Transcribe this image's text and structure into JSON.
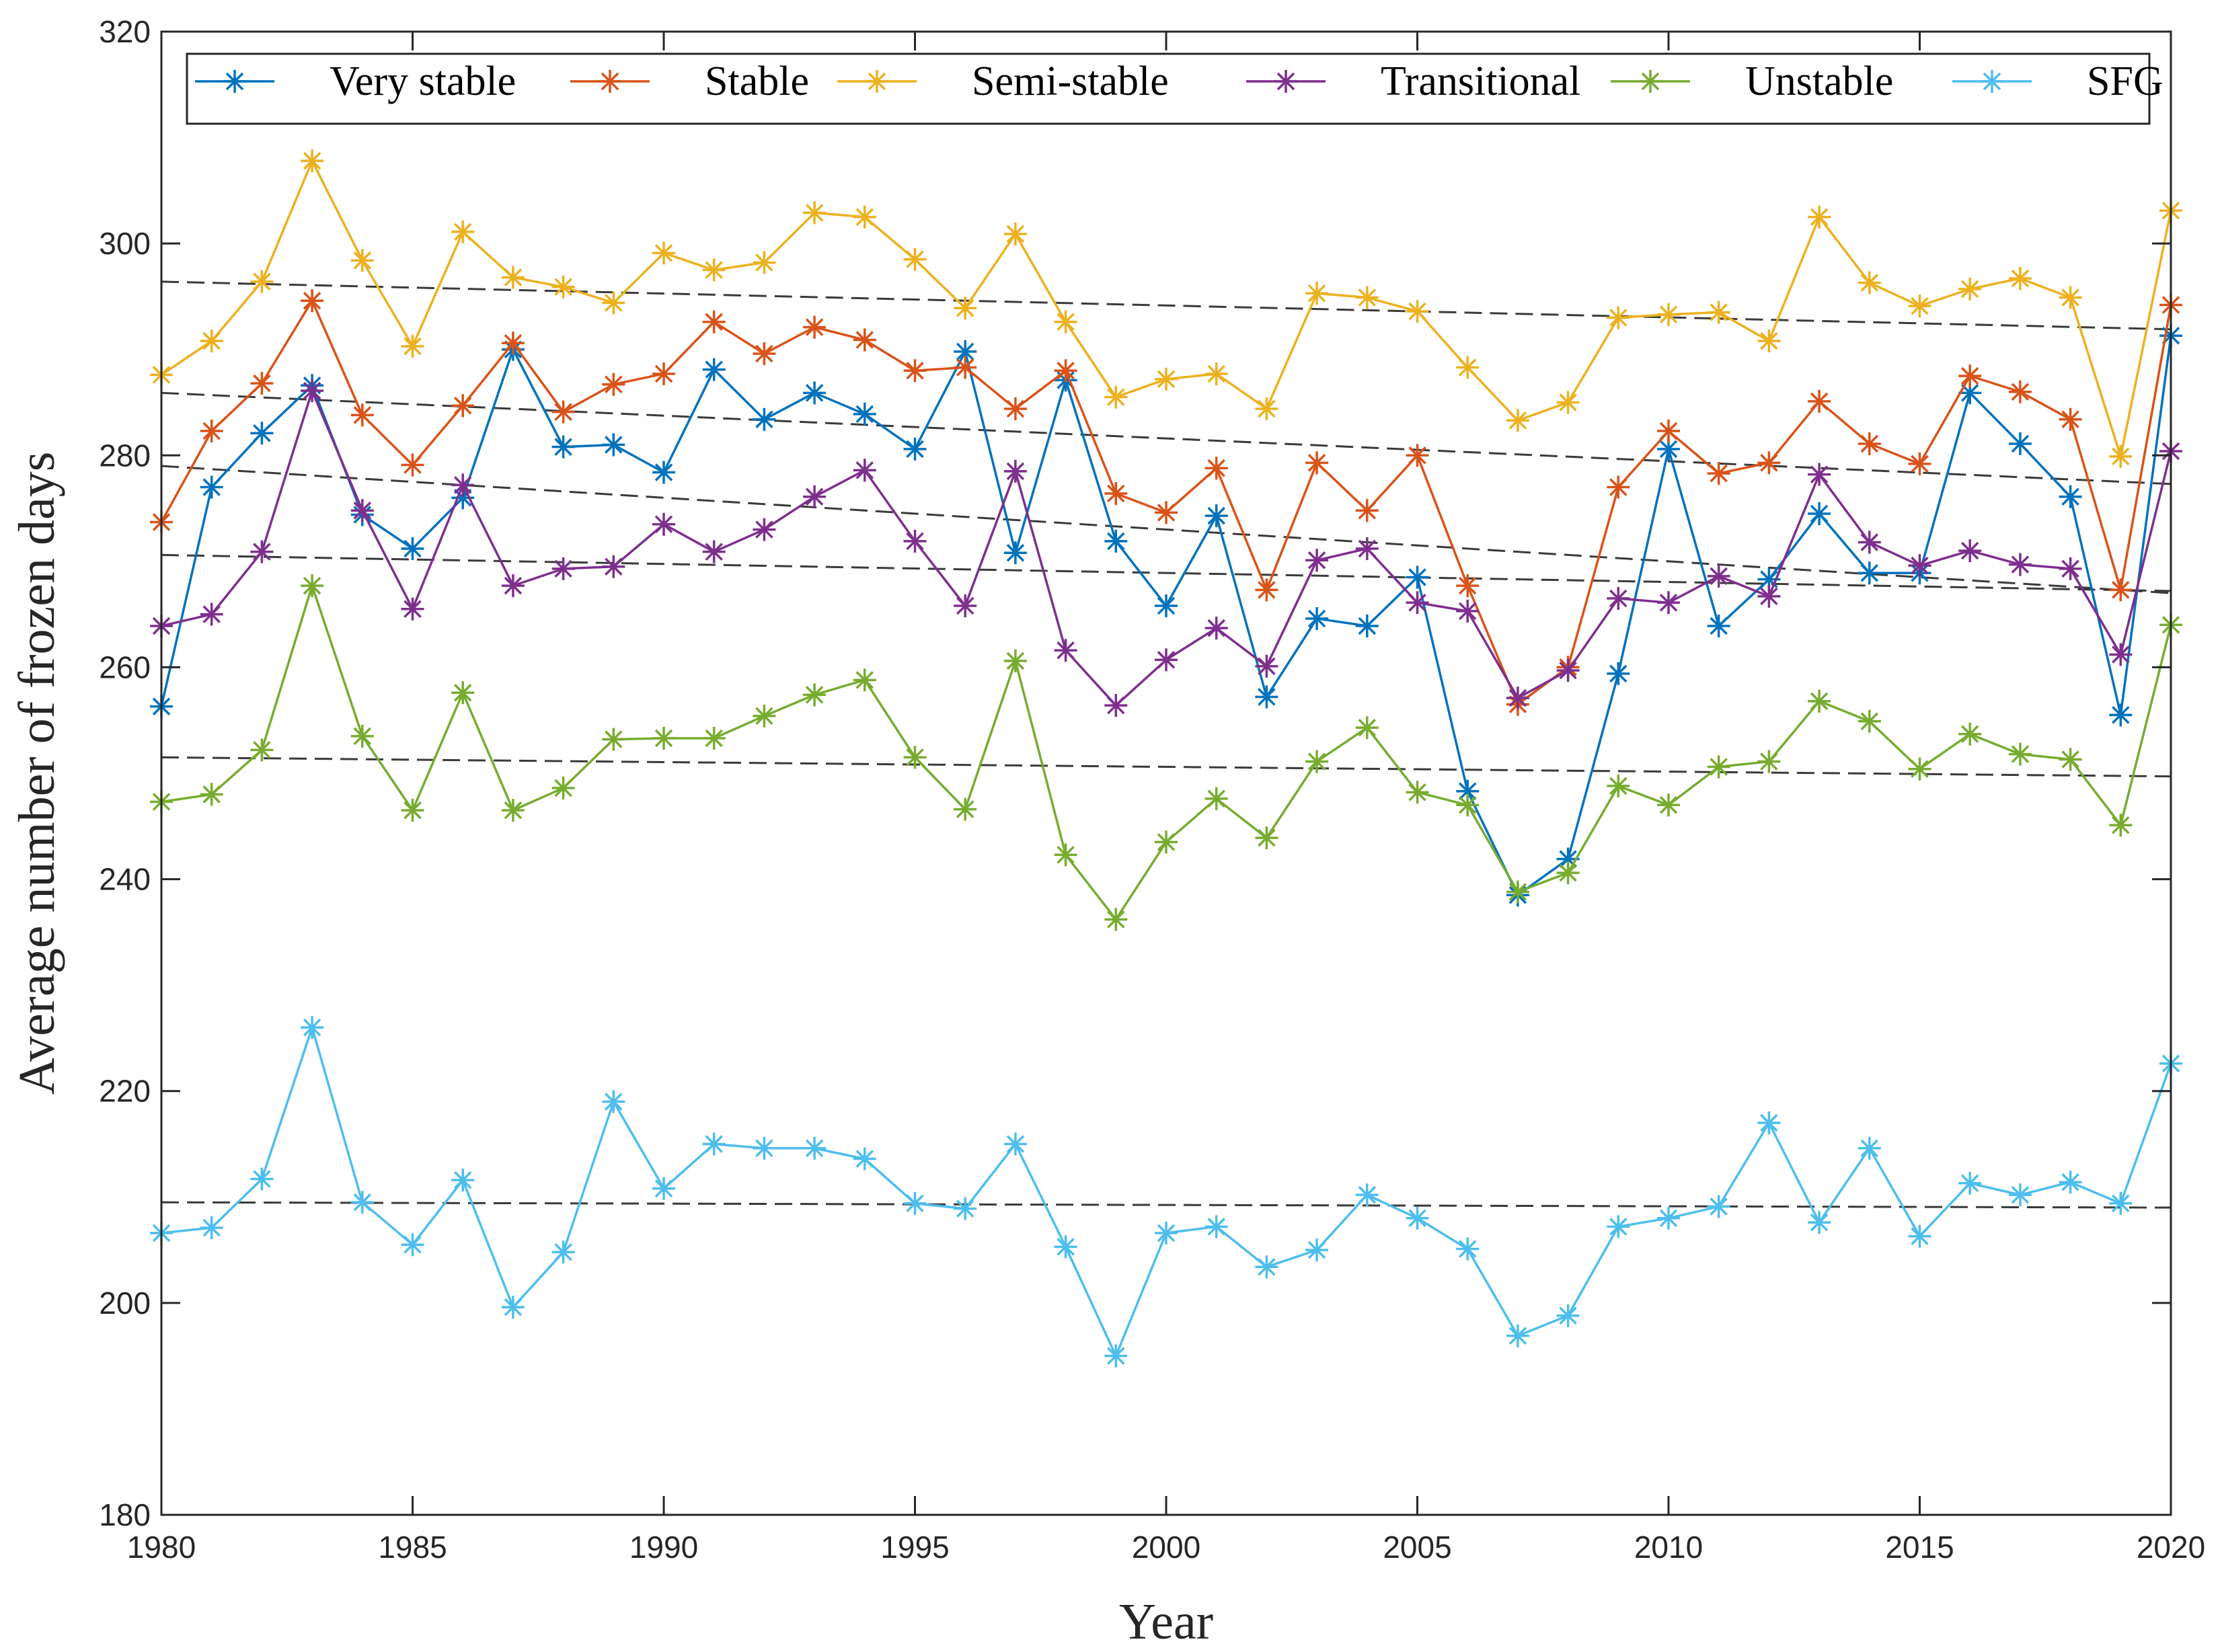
{
  "chart_data": {
    "type": "line",
    "title": "",
    "xlabel": "Year",
    "ylabel": "Average number of frozen days",
    "xlim": [
      1980,
      2020
    ],
    "ylim": [
      180,
      320
    ],
    "xticks": [
      1980,
      1985,
      1990,
      1995,
      2000,
      2005,
      2010,
      2015,
      2020
    ],
    "yticks": [
      180,
      200,
      220,
      240,
      260,
      280,
      300,
      320
    ],
    "xtick_labels": [
      "1980",
      "1985",
      "1990",
      "1995",
      "2000",
      "2005",
      "2010",
      "2015",
      "2020"
    ],
    "ytick_labels": [
      "180",
      "200",
      "220",
      "240",
      "260",
      "280",
      "300",
      "320"
    ],
    "grid": false,
    "legend_position": "top",
    "marker": "asterisk",
    "x": [
      1980,
      1981,
      1982,
      1983,
      1984,
      1985,
      1986,
      1987,
      1988,
      1989,
      1990,
      1991,
      1992,
      1993,
      1994,
      1995,
      1996,
      1997,
      1998,
      1999,
      2000,
      2001,
      2002,
      2003,
      2004,
      2005,
      2006,
      2007,
      2008,
      2009,
      2010,
      2011,
      2012,
      2013,
      2014,
      2015,
      2016,
      2017,
      2018,
      2019,
      2020
    ],
    "series": [
      {
        "name": "Very stable",
        "color": "#0072BD",
        "values": [
          256.3,
          277.0,
          282.1,
          286.6,
          274.4,
          271.2,
          276.0,
          290.0,
          280.8,
          281.0,
          278.4,
          288.1,
          283.4,
          285.9,
          283.9,
          280.6,
          289.8,
          270.8,
          287.1,
          271.9,
          265.8,
          274.3,
          257.2,
          264.6,
          263.9,
          268.5,
          248.3,
          238.5,
          241.9,
          259.4,
          280.6,
          263.9,
          268.3,
          274.5,
          268.9,
          268.9,
          285.9,
          281.1,
          276.1,
          255.5,
          291.3
        ],
        "trend": [
          270.6,
          267.2
        ]
      },
      {
        "name": "Stable",
        "color": "#D95319",
        "values": [
          273.7,
          282.3,
          286.8,
          294.6,
          283.8,
          279.1,
          284.7,
          290.6,
          284.1,
          286.7,
          287.7,
          292.6,
          289.6,
          292.1,
          290.9,
          288.0,
          288.3,
          284.4,
          288.0,
          276.4,
          274.6,
          278.8,
          267.3,
          279.3,
          274.8,
          280.0,
          267.7,
          256.5,
          260.0,
          277.0,
          282.3,
          278.3,
          279.3,
          285.1,
          281.1,
          279.2,
          287.5,
          286.0,
          283.4,
          267.3,
          294.2
        ],
        "trend": [
          285.9,
          277.3
        ]
      },
      {
        "name": "Semi-stable",
        "color": "#EDB120",
        "values": [
          287.6,
          290.8,
          296.4,
          307.8,
          298.4,
          290.3,
          301.1,
          296.8,
          295.9,
          294.4,
          299.1,
          297.5,
          298.2,
          302.9,
          302.5,
          298.5,
          293.9,
          300.9,
          292.6,
          285.5,
          287.2,
          287.7,
          284.4,
          295.3,
          294.9,
          293.6,
          288.3,
          283.3,
          285.0,
          293.0,
          293.3,
          293.5,
          290.8,
          302.5,
          296.3,
          294.1,
          295.7,
          296.7,
          294.9,
          279.9,
          303.1
        ],
        "trend": [
          296.4,
          291.9
        ]
      },
      {
        "name": "Transitional",
        "color": "#7E2F8E",
        "values": [
          263.9,
          265.0,
          270.9,
          286.1,
          274.8,
          265.5,
          277.2,
          267.7,
          269.3,
          269.5,
          273.5,
          270.9,
          273.0,
          276.1,
          278.6,
          271.9,
          265.8,
          278.5,
          261.6,
          256.4,
          260.7,
          263.7,
          260.1,
          270.1,
          271.2,
          266.1,
          265.3,
          257.1,
          259.7,
          266.5,
          266.1,
          268.6,
          266.7,
          278.2,
          271.8,
          269.6,
          271.0,
          269.7,
          269.3,
          261.2,
          280.4
        ],
        "trend": [
          279.0,
          267.0
        ]
      },
      {
        "name": "Unstable",
        "color": "#77AC30",
        "values": [
          247.3,
          248.0,
          252.2,
          267.7,
          253.5,
          246.5,
          257.6,
          246.5,
          248.6,
          253.2,
          253.3,
          253.3,
          255.4,
          257.4,
          258.8,
          251.5,
          246.6,
          260.6,
          242.3,
          236.2,
          243.5,
          247.6,
          243.9,
          251.1,
          254.3,
          248.2,
          247.0,
          238.8,
          240.6,
          248.8,
          247.0,
          250.6,
          251.1,
          256.8,
          254.9,
          250.4,
          253.7,
          251.8,
          251.3,
          245.1,
          264.0
        ],
        "trend": [
          251.5,
          249.7
        ]
      },
      {
        "name": "SFG",
        "color": "#4DBEEE",
        "values": [
          206.6,
          207.1,
          211.7,
          226.0,
          209.5,
          205.5,
          211.6,
          199.6,
          204.8,
          219.0,
          210.8,
          215.0,
          214.6,
          214.6,
          213.6,
          209.4,
          208.9,
          215.0,
          205.3,
          195.0,
          206.6,
          207.2,
          203.4,
          205.0,
          210.2,
          208.0,
          205.1,
          196.9,
          198.8,
          207.2,
          208.0,
          209.1,
          217.0,
          207.6,
          214.6,
          206.3,
          211.3,
          210.2,
          211.4,
          209.4,
          222.6
        ],
        "trend": [
          209.5,
          209.0
        ]
      }
    ]
  }
}
